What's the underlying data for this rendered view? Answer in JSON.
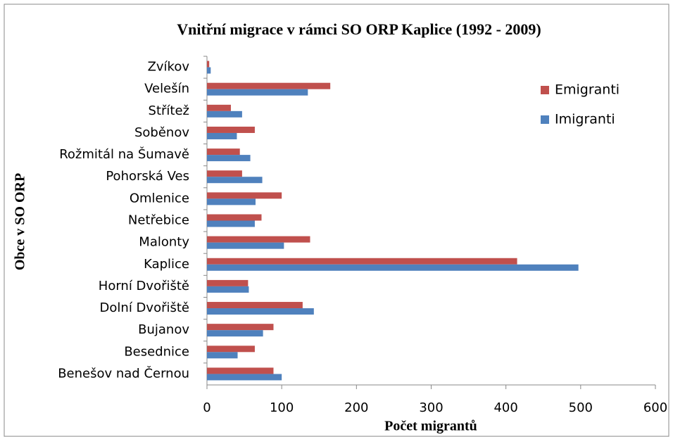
{
  "chart_data": {
    "type": "hbar",
    "title": "Vnitřní  migrace v rámci SO ORP Kaplice (1992 - 2009)",
    "xlabel": "Počet migrantů",
    "ylabel": "Obce v SO ORP",
    "categories": [
      "Benešov nad Černou",
      "Besednice",
      "Bujanov",
      "Dolní Dvořiště",
      "Horní Dvořiště",
      "Kaplice",
      "Malonty",
      "Netřebice",
      "Omlenice",
      "Pohorská Ves",
      "Rožmitál na Šumavě",
      "Soběnov",
      "Střítež",
      "Velešín",
      "Zvíkov"
    ],
    "series": [
      {
        "name": "Emigranti",
        "color": "#c0504d",
        "values": [
          89,
          64,
          89,
          128,
          55,
          415,
          138,
          73,
          100,
          47,
          44,
          64,
          32,
          165,
          3
        ]
      },
      {
        "name": "Imigranti",
        "color": "#4f81bd",
        "values": [
          100,
          41,
          75,
          143,
          56,
          497,
          103,
          64,
          65,
          74,
          58,
          40,
          47,
          135,
          5
        ]
      }
    ],
    "xlim": [
      0,
      600
    ],
    "xticks": [
      0,
      100,
      200,
      300,
      400,
      500,
      600
    ],
    "legend": "right"
  }
}
